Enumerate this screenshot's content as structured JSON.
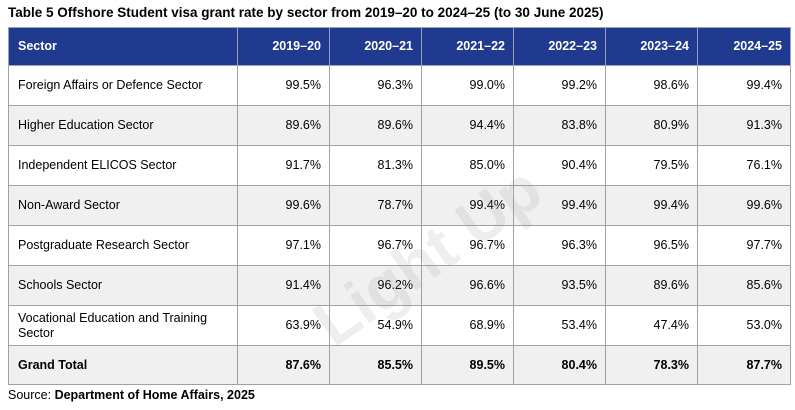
{
  "title": "Table 5 Offshore Student visa grant rate by sector from 2019–20 to 2024–25 (to 30 June 2025)",
  "table": {
    "header_sector": "Sector",
    "years": [
      "2019–20",
      "2020–21",
      "2021–22",
      "2022–23",
      "2023–24",
      "2024–25"
    ],
    "rows": [
      {
        "sector": "Foreign Affairs or Defence Sector",
        "values": [
          "99.5%",
          "96.3%",
          "99.0%",
          "99.2%",
          "98.6%",
          "99.4%"
        ]
      },
      {
        "sector": "Higher Education Sector",
        "values": [
          "89.6%",
          "89.6%",
          "94.4%",
          "83.8%",
          "80.9%",
          "91.3%"
        ]
      },
      {
        "sector": "Independent ELICOS Sector",
        "values": [
          "91.7%",
          "81.3%",
          "85.0%",
          "90.4%",
          "79.5%",
          "76.1%"
        ]
      },
      {
        "sector": "Non-Award Sector",
        "values": [
          "99.6%",
          "78.7%",
          "99.4%",
          "99.4%",
          "99.4%",
          "99.6%"
        ]
      },
      {
        "sector": "Postgraduate Research Sector",
        "values": [
          "97.1%",
          "96.7%",
          "96.7%",
          "96.3%",
          "96.5%",
          "97.7%"
        ]
      },
      {
        "sector": "Schools Sector",
        "values": [
          "91.4%",
          "96.2%",
          "96.6%",
          "93.5%",
          "89.6%",
          "85.6%"
        ]
      },
      {
        "sector": "Vocational Education and Training Sector",
        "values": [
          "63.9%",
          "54.9%",
          "68.9%",
          "53.4%",
          "47.4%",
          "53.0%"
        ]
      }
    ],
    "total": {
      "sector": "Grand Total",
      "values": [
        "87.6%",
        "85.5%",
        "89.5%",
        "80.4%",
        "78.3%",
        "87.7%"
      ]
    }
  },
  "source": {
    "prefix": "Source: ",
    "text": "Department of Home Affairs, 2025"
  },
  "watermark": {
    "text": "Light Up"
  },
  "colors": {
    "header_bg": "#1f3a8f",
    "header_text": "#ffffff",
    "alt_row_bg": "#f0f0f0",
    "border": "#9aa3ad"
  }
}
